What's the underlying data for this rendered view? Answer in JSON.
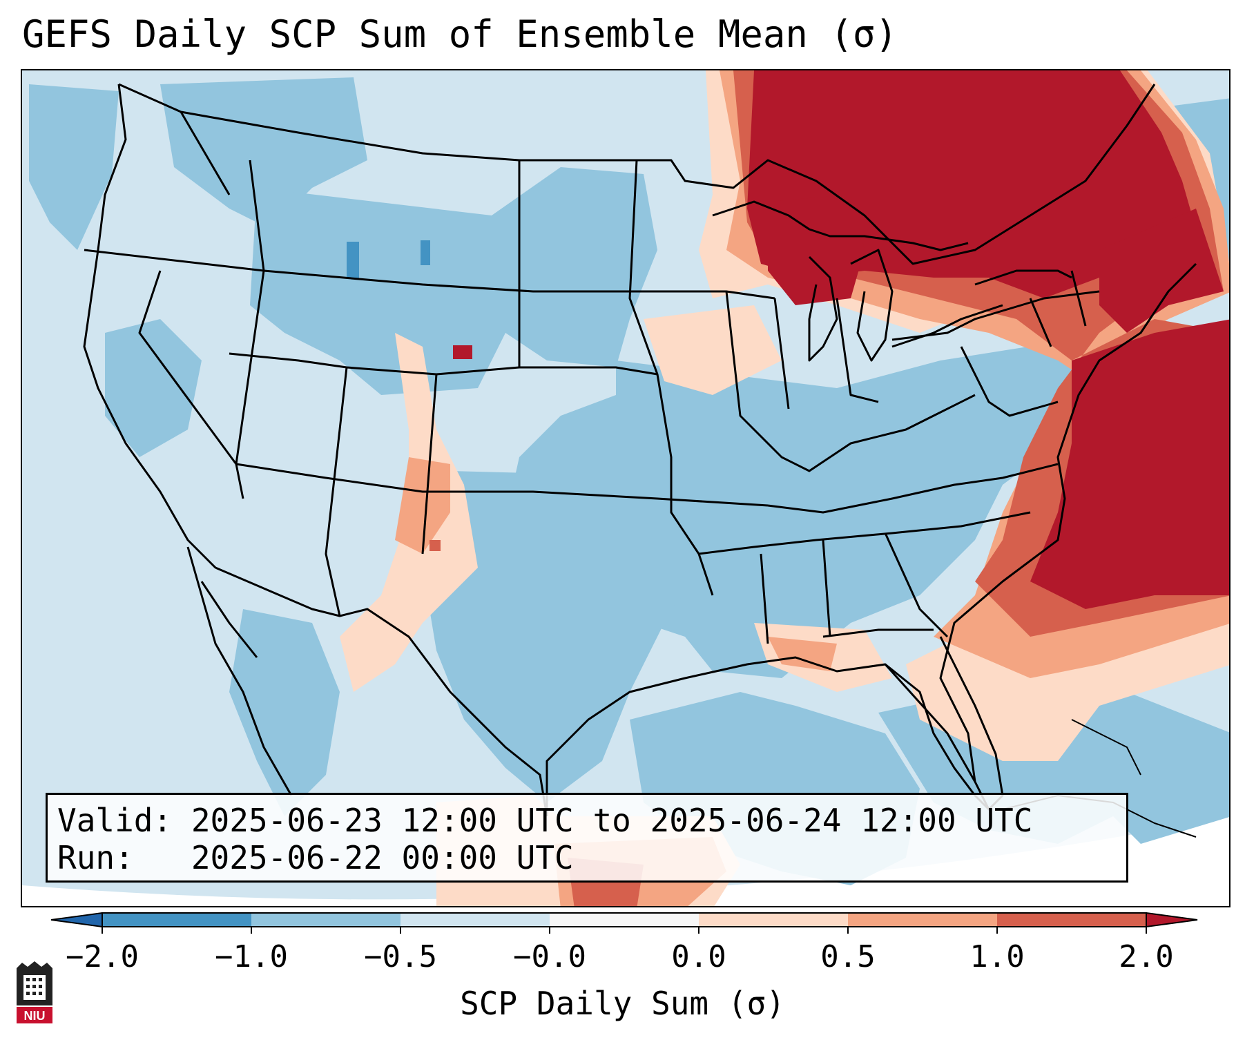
{
  "title": "GEFS Daily SCP Sum of Ensemble Mean (σ)",
  "info": {
    "valid_line": "Valid: 2025-06-23 12:00 UTC to 2025-06-24 12:00 UTC",
    "run_line": "Run:   2025-06-22 00:00 UTC"
  },
  "colorbar": {
    "label": "SCP Daily Sum (σ)",
    "ticks": [
      "−2.0",
      "−1.0",
      "−0.5",
      "−0.0",
      "0.0",
      "0.5",
      "1.0",
      "2.0"
    ],
    "colors": [
      "#4393c3",
      "#92c5de",
      "#d1e5f0",
      "#f7f7f7",
      "#fddbc7",
      "#f4a582",
      "#d6604d"
    ],
    "under_color": "#2166ac",
    "over_color": "#b2182b"
  },
  "logo": {
    "text": "NIU"
  }
}
